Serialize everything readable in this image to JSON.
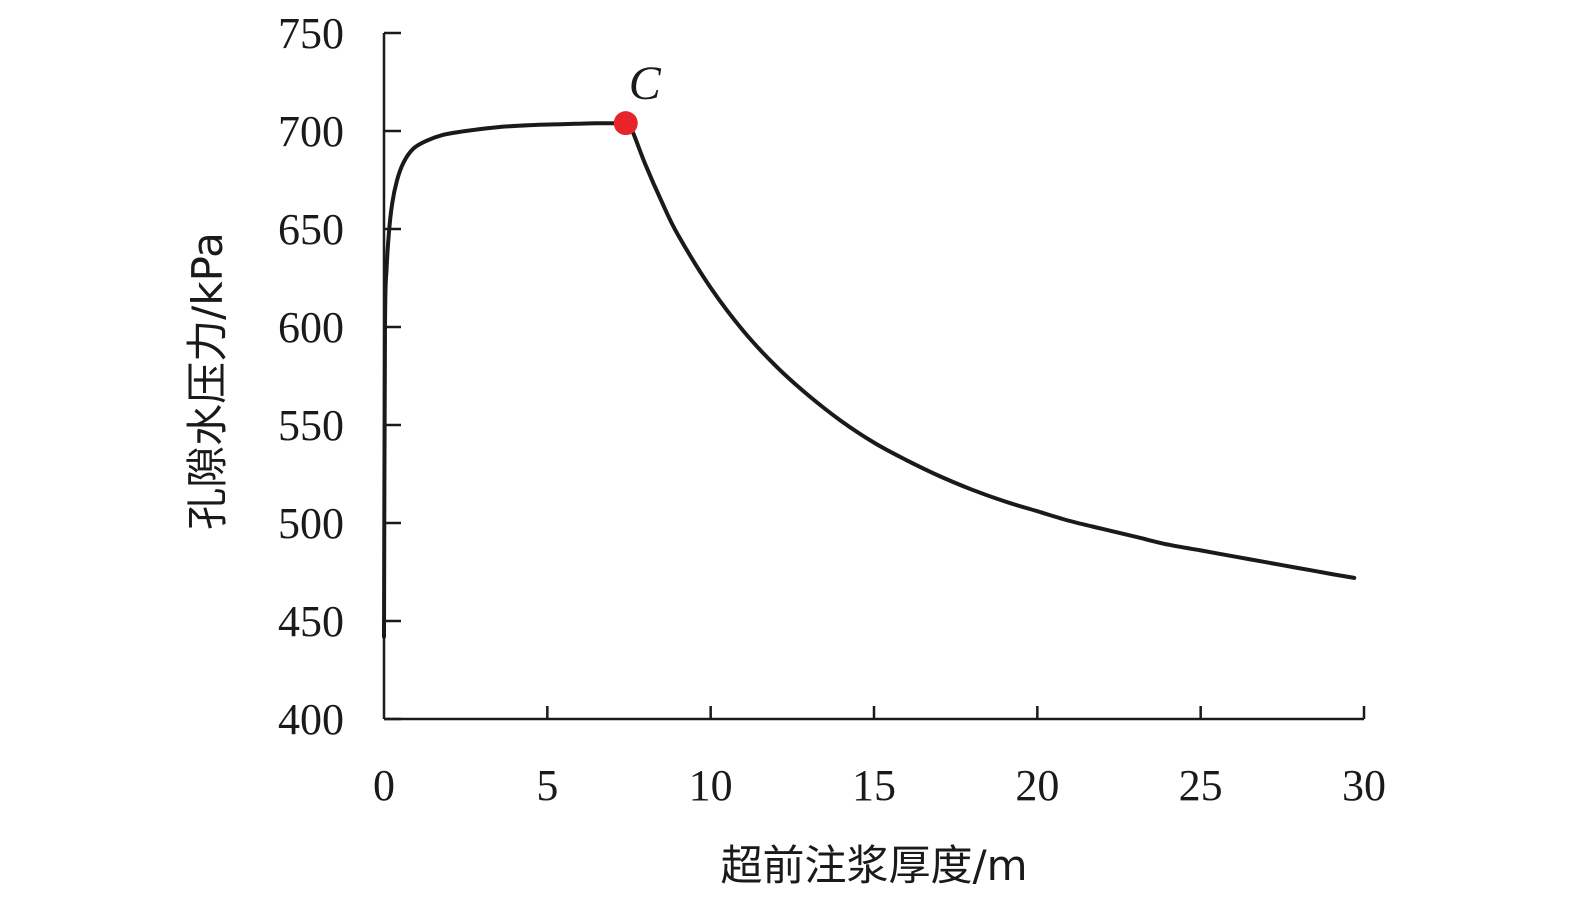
{
  "chart_data": {
    "type": "line",
    "title": "",
    "xlabel": "超前注浆厚度/m",
    "ylabel": "孔隙水压力/kPa",
    "xlim": [
      0,
      30
    ],
    "ylim": [
      400,
      750
    ],
    "x_ticks": [
      0,
      5,
      10,
      15,
      20,
      25,
      30
    ],
    "y_ticks": [
      400,
      450,
      500,
      550,
      600,
      650,
      700,
      750
    ],
    "grid": false,
    "legend": "none",
    "line_color": "#1a1a1a",
    "marker_color": "#e8242b",
    "series": [
      {
        "x": [
          0.0,
          0.03,
          0.08,
          0.15,
          0.25,
          0.4,
          0.6,
          0.9,
          1.3,
          1.8,
          2.5,
          3.5,
          4.5,
          5.5,
          6.5,
          7.0,
          7.4,
          7.6,
          8.0,
          8.5,
          9.0,
          10.0,
          11.0,
          12.0,
          13.0,
          14.0,
          15.0,
          16.0,
          17.0,
          18.0,
          19.0,
          20.0,
          21.0,
          22.0,
          23.0,
          24.0,
          25.0,
          26.0,
          27.0,
          28.0,
          29.0,
          29.7
        ],
        "y": [
          442,
          600,
          630,
          648,
          663,
          675,
          684,
          691,
          695,
          698,
          700,
          702,
          703,
          703.5,
          704,
          704,
          704,
          700,
          683,
          664,
          647,
          620,
          598,
          580,
          565,
          552,
          541,
          532,
          524,
          517,
          511,
          506,
          501,
          497,
          493,
          489,
          486,
          483,
          480,
          477,
          474,
          472
        ]
      }
    ],
    "annotations": [
      {
        "label": "C",
        "x": 7.4,
        "y": 704
      }
    ]
  }
}
